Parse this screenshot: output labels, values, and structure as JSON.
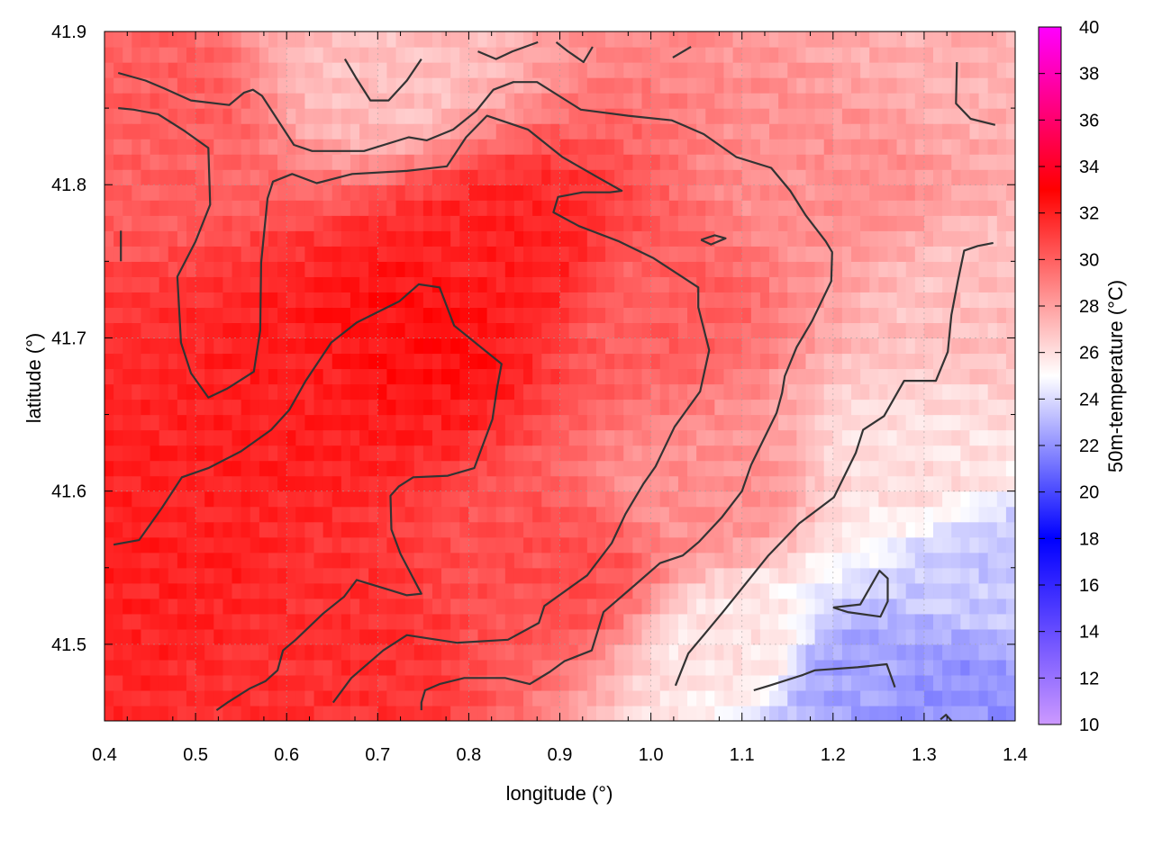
{
  "chart_data": {
    "type": "heatmap",
    "title": "",
    "xlabel": "longitude (°)",
    "ylabel": "latitude (°)",
    "colorbar_label": "50m-temperature (°C)",
    "xlim": [
      0.4,
      1.4
    ],
    "ylim": [
      41.45,
      41.9
    ],
    "x_ticks": [
      "0.4",
      "0.5",
      "0.6",
      "0.7",
      "0.8",
      "0.9",
      "1.0",
      "1.1",
      "1.2",
      "1.3",
      "1.4"
    ],
    "y_ticks": [
      "41.5",
      "41.6",
      "41.7",
      "41.8",
      "41.9"
    ],
    "colorbar_range": [
      10,
      40
    ],
    "colorbar_ticks": [
      "10",
      "12",
      "14",
      "16",
      "18",
      "20",
      "22",
      "24",
      "26",
      "28",
      "30",
      "32",
      "34",
      "36",
      "38",
      "40"
    ],
    "colormap": [
      {
        "value": 10,
        "color": "#cc99ff"
      },
      {
        "value": 18,
        "color": "#0000ff"
      },
      {
        "value": 25,
        "color": "#ffffff"
      },
      {
        "value": 33,
        "color": "#ff0000"
      },
      {
        "value": 40,
        "color": "#ff00ff"
      }
    ],
    "grid": true,
    "legend": "colorbar-right",
    "field_anchors": [
      {
        "lon": 0.45,
        "lat": 41.85,
        "t": 30.0
      },
      {
        "lon": 0.6,
        "lat": 41.65,
        "t": 32.0
      },
      {
        "lon": 0.75,
        "lat": 41.7,
        "t": 32.5
      },
      {
        "lon": 0.85,
        "lat": 41.75,
        "t": 32.0
      },
      {
        "lon": 0.45,
        "lat": 41.55,
        "t": 32.0
      },
      {
        "lon": 0.65,
        "lat": 41.5,
        "t": 31.5
      },
      {
        "lon": 0.9,
        "lat": 41.55,
        "t": 30.5
      },
      {
        "lon": 1.0,
        "lat": 41.72,
        "t": 30.0
      },
      {
        "lon": 1.2,
        "lat": 41.8,
        "t": 28.5
      },
      {
        "lon": 1.35,
        "lat": 41.88,
        "t": 27.5
      },
      {
        "lon": 0.7,
        "lat": 41.88,
        "t": 27.0
      },
      {
        "lon": 1.05,
        "lat": 41.6,
        "t": 28.5
      },
      {
        "lon": 1.1,
        "lat": 41.5,
        "t": 25.8
      },
      {
        "lon": 1.22,
        "lat": 41.48,
        "t": 22.5
      },
      {
        "lon": 1.32,
        "lat": 41.46,
        "t": 22.0
      },
      {
        "lon": 1.38,
        "lat": 41.55,
        "t": 23.5
      },
      {
        "lon": 1.3,
        "lat": 41.62,
        "t": 26.0
      },
      {
        "lon": 1.35,
        "lat": 41.72,
        "t": 27.0
      }
    ],
    "contours": [
      [
        [
          0.415,
          41.873
        ],
        [
          0.445,
          41.868
        ],
        [
          0.465,
          41.863
        ],
        [
          0.495,
          41.855
        ],
        [
          0.537,
          41.852
        ],
        [
          0.553,
          41.86
        ],
        [
          0.563,
          41.862
        ],
        [
          0.573,
          41.858
        ],
        [
          0.608,
          41.826
        ],
        [
          0.628,
          41.822
        ],
        [
          0.685,
          41.822
        ],
        [
          0.734,
          41.831
        ],
        [
          0.754,
          41.829
        ],
        [
          0.783,
          41.836
        ],
        [
          0.808,
          41.848
        ],
        [
          0.827,
          41.862
        ],
        [
          0.849,
          41.867
        ],
        [
          0.875,
          41.867
        ],
        [
          0.923,
          41.849
        ],
        [
          0.975,
          41.845
        ],
        [
          1.023,
          41.842
        ],
        [
          1.058,
          41.833
        ],
        [
          1.094,
          41.818
        ],
        [
          1.132,
          41.811
        ],
        [
          1.153,
          41.796
        ],
        [
          1.17,
          41.78
        ],
        [
          1.192,
          41.763
        ],
        [
          1.199,
          41.756
        ],
        [
          1.198,
          41.737
        ],
        [
          1.177,
          41.711
        ],
        [
          1.16,
          41.694
        ],
        [
          1.147,
          41.675
        ],
        [
          1.144,
          41.664
        ],
        [
          1.138,
          41.651
        ],
        [
          1.11,
          41.617
        ],
        [
          1.1,
          41.6
        ],
        [
          1.078,
          41.583
        ],
        [
          1.053,
          41.567
        ],
        [
          1.035,
          41.558
        ],
        [
          1.01,
          41.553
        ],
        [
          0.983,
          41.539
        ],
        [
          0.948,
          41.521
        ],
        [
          0.935,
          41.496
        ],
        [
          0.905,
          41.489
        ],
        [
          0.889,
          41.482
        ],
        [
          0.867,
          41.474
        ],
        [
          0.84,
          41.478
        ],
        [
          0.795,
          41.478
        ],
        [
          0.768,
          41.474
        ],
        [
          0.752,
          41.47
        ],
        [
          0.748,
          41.462
        ],
        [
          0.748,
          41.457
        ]
      ],
      [
        [
          0.415,
          41.85
        ],
        [
          0.432,
          41.849
        ],
        [
          0.459,
          41.846
        ],
        [
          0.488,
          41.835
        ],
        [
          0.514,
          41.824
        ],
        [
          0.516,
          41.787
        ],
        [
          0.5,
          41.763
        ],
        [
          0.48,
          41.74
        ],
        [
          0.484,
          41.697
        ],
        [
          0.495,
          41.677
        ],
        [
          0.514,
          41.661
        ],
        [
          0.535,
          41.667
        ],
        [
          0.564,
          41.678
        ],
        [
          0.571,
          41.705
        ],
        [
          0.572,
          41.749
        ],
        [
          0.579,
          41.791
        ],
        [
          0.585,
          41.802
        ],
        [
          0.606,
          41.807
        ],
        [
          0.633,
          41.801
        ],
        [
          0.672,
          41.807
        ],
        [
          0.732,
          41.809
        ],
        [
          0.776,
          41.812
        ],
        [
          0.797,
          41.831
        ],
        [
          0.82,
          41.845
        ],
        [
          0.865,
          41.836
        ],
        [
          0.903,
          41.818
        ],
        [
          0.941,
          41.805
        ],
        [
          0.968,
          41.796
        ],
        [
          0.955,
          41.795
        ],
        [
          0.925,
          41.795
        ],
        [
          0.898,
          41.792
        ],
        [
          0.893,
          41.782
        ],
        [
          0.921,
          41.773
        ],
        [
          0.965,
          41.763
        ],
        [
          1.003,
          41.752
        ],
        [
          1.052,
          41.733
        ],
        [
          1.052,
          41.72
        ],
        [
          1.064,
          41.692
        ],
        [
          1.054,
          41.665
        ],
        [
          1.026,
          41.642
        ],
        [
          1.005,
          41.616
        ],
        [
          0.992,
          41.605
        ],
        [
          0.972,
          41.585
        ],
        [
          0.957,
          41.566
        ],
        [
          0.93,
          41.545
        ],
        [
          0.883,
          41.525
        ],
        [
          0.877,
          41.514
        ],
        [
          0.843,
          41.503
        ],
        [
          0.787,
          41.501
        ],
        [
          0.732,
          41.506
        ],
        [
          0.706,
          41.496
        ],
        [
          0.671,
          41.478
        ],
        [
          0.651,
          41.462
        ]
      ],
      [
        [
          0.41,
          41.565
        ],
        [
          0.438,
          41.568
        ],
        [
          0.463,
          41.589
        ],
        [
          0.485,
          41.609
        ],
        [
          0.514,
          41.615
        ],
        [
          0.55,
          41.626
        ],
        [
          0.583,
          41.64
        ],
        [
          0.603,
          41.653
        ],
        [
          0.621,
          41.672
        ],
        [
          0.649,
          41.697
        ],
        [
          0.677,
          41.71
        ],
        [
          0.724,
          41.724
        ],
        [
          0.745,
          41.735
        ],
        [
          0.768,
          41.733
        ],
        [
          0.784,
          41.708
        ],
        [
          0.836,
          41.683
        ],
        [
          0.831,
          41.667
        ],
        [
          0.826,
          41.647
        ],
        [
          0.806,
          41.615
        ],
        [
          0.777,
          41.61
        ],
        [
          0.739,
          41.609
        ],
        [
          0.723,
          41.603
        ],
        [
          0.714,
          41.597
        ],
        [
          0.715,
          41.575
        ],
        [
          0.725,
          41.559
        ],
        [
          0.748,
          41.533
        ],
        [
          0.732,
          41.532
        ],
        [
          0.71,
          41.536
        ],
        [
          0.677,
          41.542
        ],
        [
          0.663,
          41.531
        ],
        [
          0.64,
          41.52
        ],
        [
          0.61,
          41.503
        ],
        [
          0.596,
          41.496
        ],
        [
          0.59,
          41.483
        ],
        [
          0.577,
          41.476
        ],
        [
          0.559,
          41.471
        ],
        [
          0.535,
          41.462
        ],
        [
          0.523,
          41.457
        ]
      ],
      [
        [
          0.664,
          41.882
        ],
        [
          0.676,
          41.87
        ],
        [
          0.692,
          41.855
        ],
        [
          0.712,
          41.855
        ],
        [
          0.732,
          41.868
        ],
        [
          0.748,
          41.882
        ]
      ],
      [
        [
          0.81,
          41.887
        ],
        [
          0.83,
          41.882
        ],
        [
          0.848,
          41.887
        ],
        [
          0.876,
          41.893
        ]
      ],
      [
        [
          0.896,
          41.893
        ],
        [
          0.909,
          41.887
        ],
        [
          0.926,
          41.88
        ],
        [
          0.936,
          41.89
        ]
      ],
      [
        [
          1.024,
          41.883
        ],
        [
          1.044,
          41.89
        ]
      ],
      [
        [
          1.336,
          41.88
        ],
        [
          1.335,
          41.853
        ],
        [
          1.351,
          41.843
        ],
        [
          1.378,
          41.839
        ]
      ],
      [
        [
          0.418,
          41.75
        ],
        [
          0.418,
          41.77
        ]
      ],
      [
        [
          1.055,
          41.764
        ],
        [
          1.07,
          41.767
        ],
        [
          1.082,
          41.765
        ],
        [
          1.066,
          41.761
        ],
        [
          1.055,
          41.764
        ]
      ],
      [
        [
          1.027,
          41.473
        ],
        [
          1.041,
          41.494
        ],
        [
          1.058,
          41.506
        ],
        [
          1.079,
          41.521
        ],
        [
          1.102,
          41.538
        ],
        [
          1.129,
          41.558
        ],
        [
          1.163,
          41.579
        ],
        [
          1.201,
          41.596
        ],
        [
          1.225,
          41.625
        ],
        [
          1.233,
          41.64
        ],
        [
          1.256,
          41.649
        ],
        [
          1.278,
          41.672
        ],
        [
          1.313,
          41.672
        ],
        [
          1.326,
          41.691
        ],
        [
          1.33,
          41.715
        ],
        [
          1.337,
          41.737
        ],
        [
          1.344,
          41.757
        ],
        [
          1.359,
          41.76
        ],
        [
          1.376,
          41.762
        ]
      ],
      [
        [
          1.113,
          41.47
        ],
        [
          1.13,
          41.473
        ],
        [
          1.167,
          41.48
        ],
        [
          1.18,
          41.483
        ],
        [
          1.227,
          41.485
        ],
        [
          1.259,
          41.487
        ],
        [
          1.268,
          41.472
        ]
      ],
      [
        [
          1.2,
          41.524
        ],
        [
          1.23,
          41.526
        ],
        [
          1.251,
          41.548
        ],
        [
          1.26,
          41.543
        ],
        [
          1.26,
          41.528
        ],
        [
          1.252,
          41.518
        ],
        [
          1.216,
          41.521
        ],
        [
          1.2,
          41.524
        ]
      ],
      [
        [
          1.318,
          41.451
        ],
        [
          1.324,
          41.454
        ],
        [
          1.33,
          41.45
        ]
      ]
    ]
  }
}
